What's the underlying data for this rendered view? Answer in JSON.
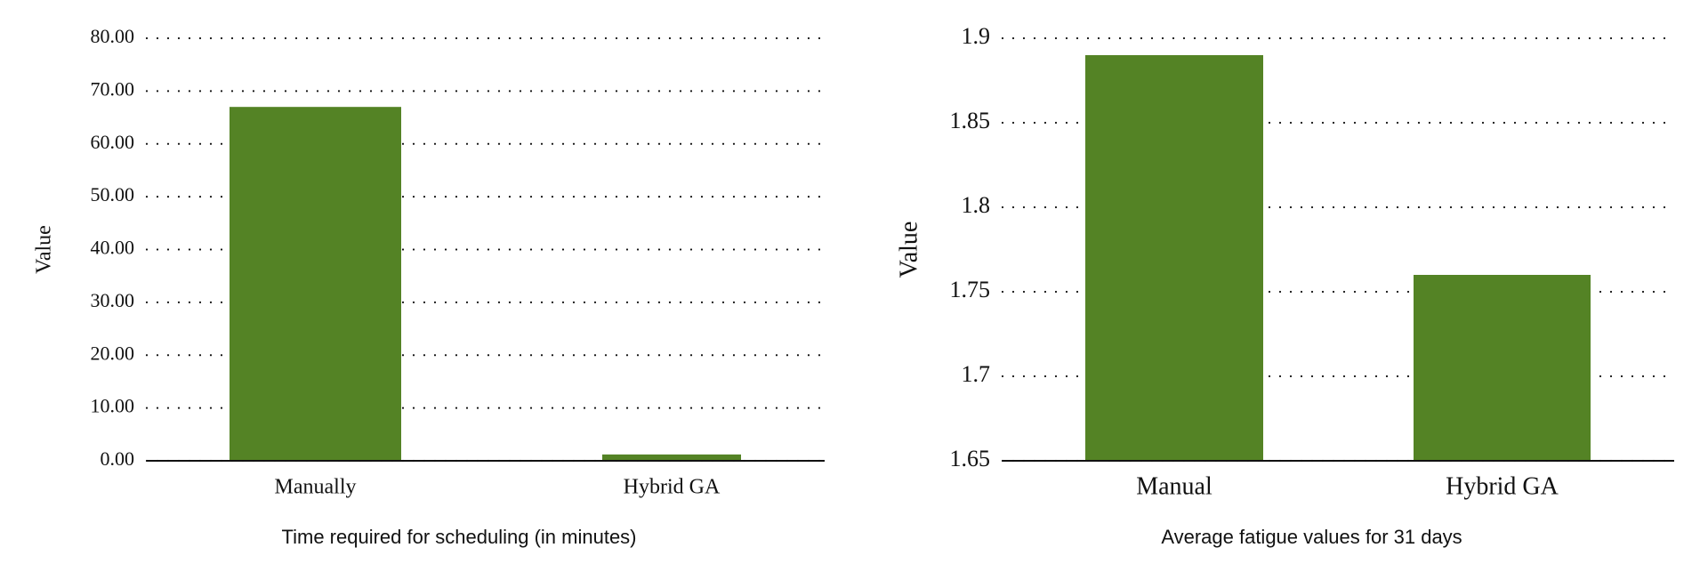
{
  "chart_data": [
    {
      "type": "bar",
      "title": "Time required for scheduling (in minutes)",
      "y_label": "Value",
      "categories": [
        "Manually",
        "Hybrid GA"
      ],
      "values": [
        67,
        1.2
      ],
      "color": "#548325",
      "ylim": [
        0,
        80
      ],
      "yticks": [
        {
          "value": 0,
          "label": "0.00"
        },
        {
          "value": 10,
          "label": "10.00"
        },
        {
          "value": 20,
          "label": "20.00"
        },
        {
          "value": 30,
          "label": "30.00"
        },
        {
          "value": 40,
          "label": "40.00"
        },
        {
          "value": 50,
          "label": "50.00"
        },
        {
          "value": 60,
          "label": "60.00"
        },
        {
          "value": 70,
          "label": "70.00"
        },
        {
          "value": 80,
          "label": "80.00"
        }
      ],
      "grid": true
    },
    {
      "type": "bar",
      "title": "Average fatigue values for 31 days",
      "y_label": "Value",
      "categories": [
        "Manual",
        "Hybrid GA"
      ],
      "values": [
        1.89,
        1.76
      ],
      "color": "#548325",
      "ylim": [
        1.65,
        1.9
      ],
      "yticks": [
        1.65,
        1.7,
        1.75,
        1.8,
        1.85,
        1.9
      ],
      "grid": true
    }
  ]
}
